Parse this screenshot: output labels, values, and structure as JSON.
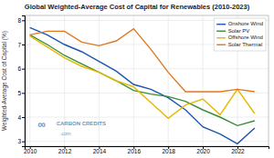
{
  "chart_data": {
    "type": "line",
    "title": "Global Weighted-Average Cost of Capital for Renewables (2010-2023)",
    "ylabel": "Weighted-Average Cost of Capital (%)",
    "x": [
      2010,
      2011,
      2012,
      2013,
      2014,
      2015,
      2016,
      2017,
      2018,
      2019,
      2020,
      2021,
      2022,
      2023
    ],
    "series": [
      {
        "name": "Onshore Wind",
        "color": "#1a56b0",
        "values": [
          7.7,
          7.4,
          7.0,
          6.7,
          6.3,
          5.9,
          5.35,
          5.15,
          4.8,
          4.3,
          3.6,
          3.3,
          2.9,
          3.55
        ]
      },
      {
        "name": "Solar PV",
        "color": "#3a8c3a",
        "values": [
          7.4,
          7.0,
          6.55,
          6.2,
          5.85,
          5.5,
          5.1,
          4.95,
          4.85,
          4.65,
          4.3,
          4.0,
          3.65,
          3.85
        ]
      },
      {
        "name": "Offshore Wind",
        "color": "#e6b800",
        "values": [
          7.35,
          6.9,
          6.45,
          6.1,
          5.85,
          5.5,
          5.25,
          4.6,
          3.95,
          4.5,
          4.75,
          4.1,
          5.15,
          4.15
        ]
      },
      {
        "name": "Solar Thermal",
        "color": "#e07820",
        "values": [
          7.4,
          7.55,
          7.55,
          7.1,
          6.95,
          7.15,
          7.65,
          6.8,
          5.85,
          5.05,
          5.05,
          5.05,
          5.15,
          5.05
        ]
      }
    ],
    "xlim": [
      2009.7,
      2023.8
    ],
    "ylim": [
      2.8,
      8.2
    ],
    "xticks": [
      2010,
      2012,
      2014,
      2016,
      2018,
      2020,
      2022
    ],
    "yticks": [
      3,
      4,
      5,
      6,
      7,
      8
    ],
    "grid": true,
    "legend": "upper right",
    "annotations": [
      "∞",
      "CARBON CREDITS",
      ".com"
    ]
  }
}
